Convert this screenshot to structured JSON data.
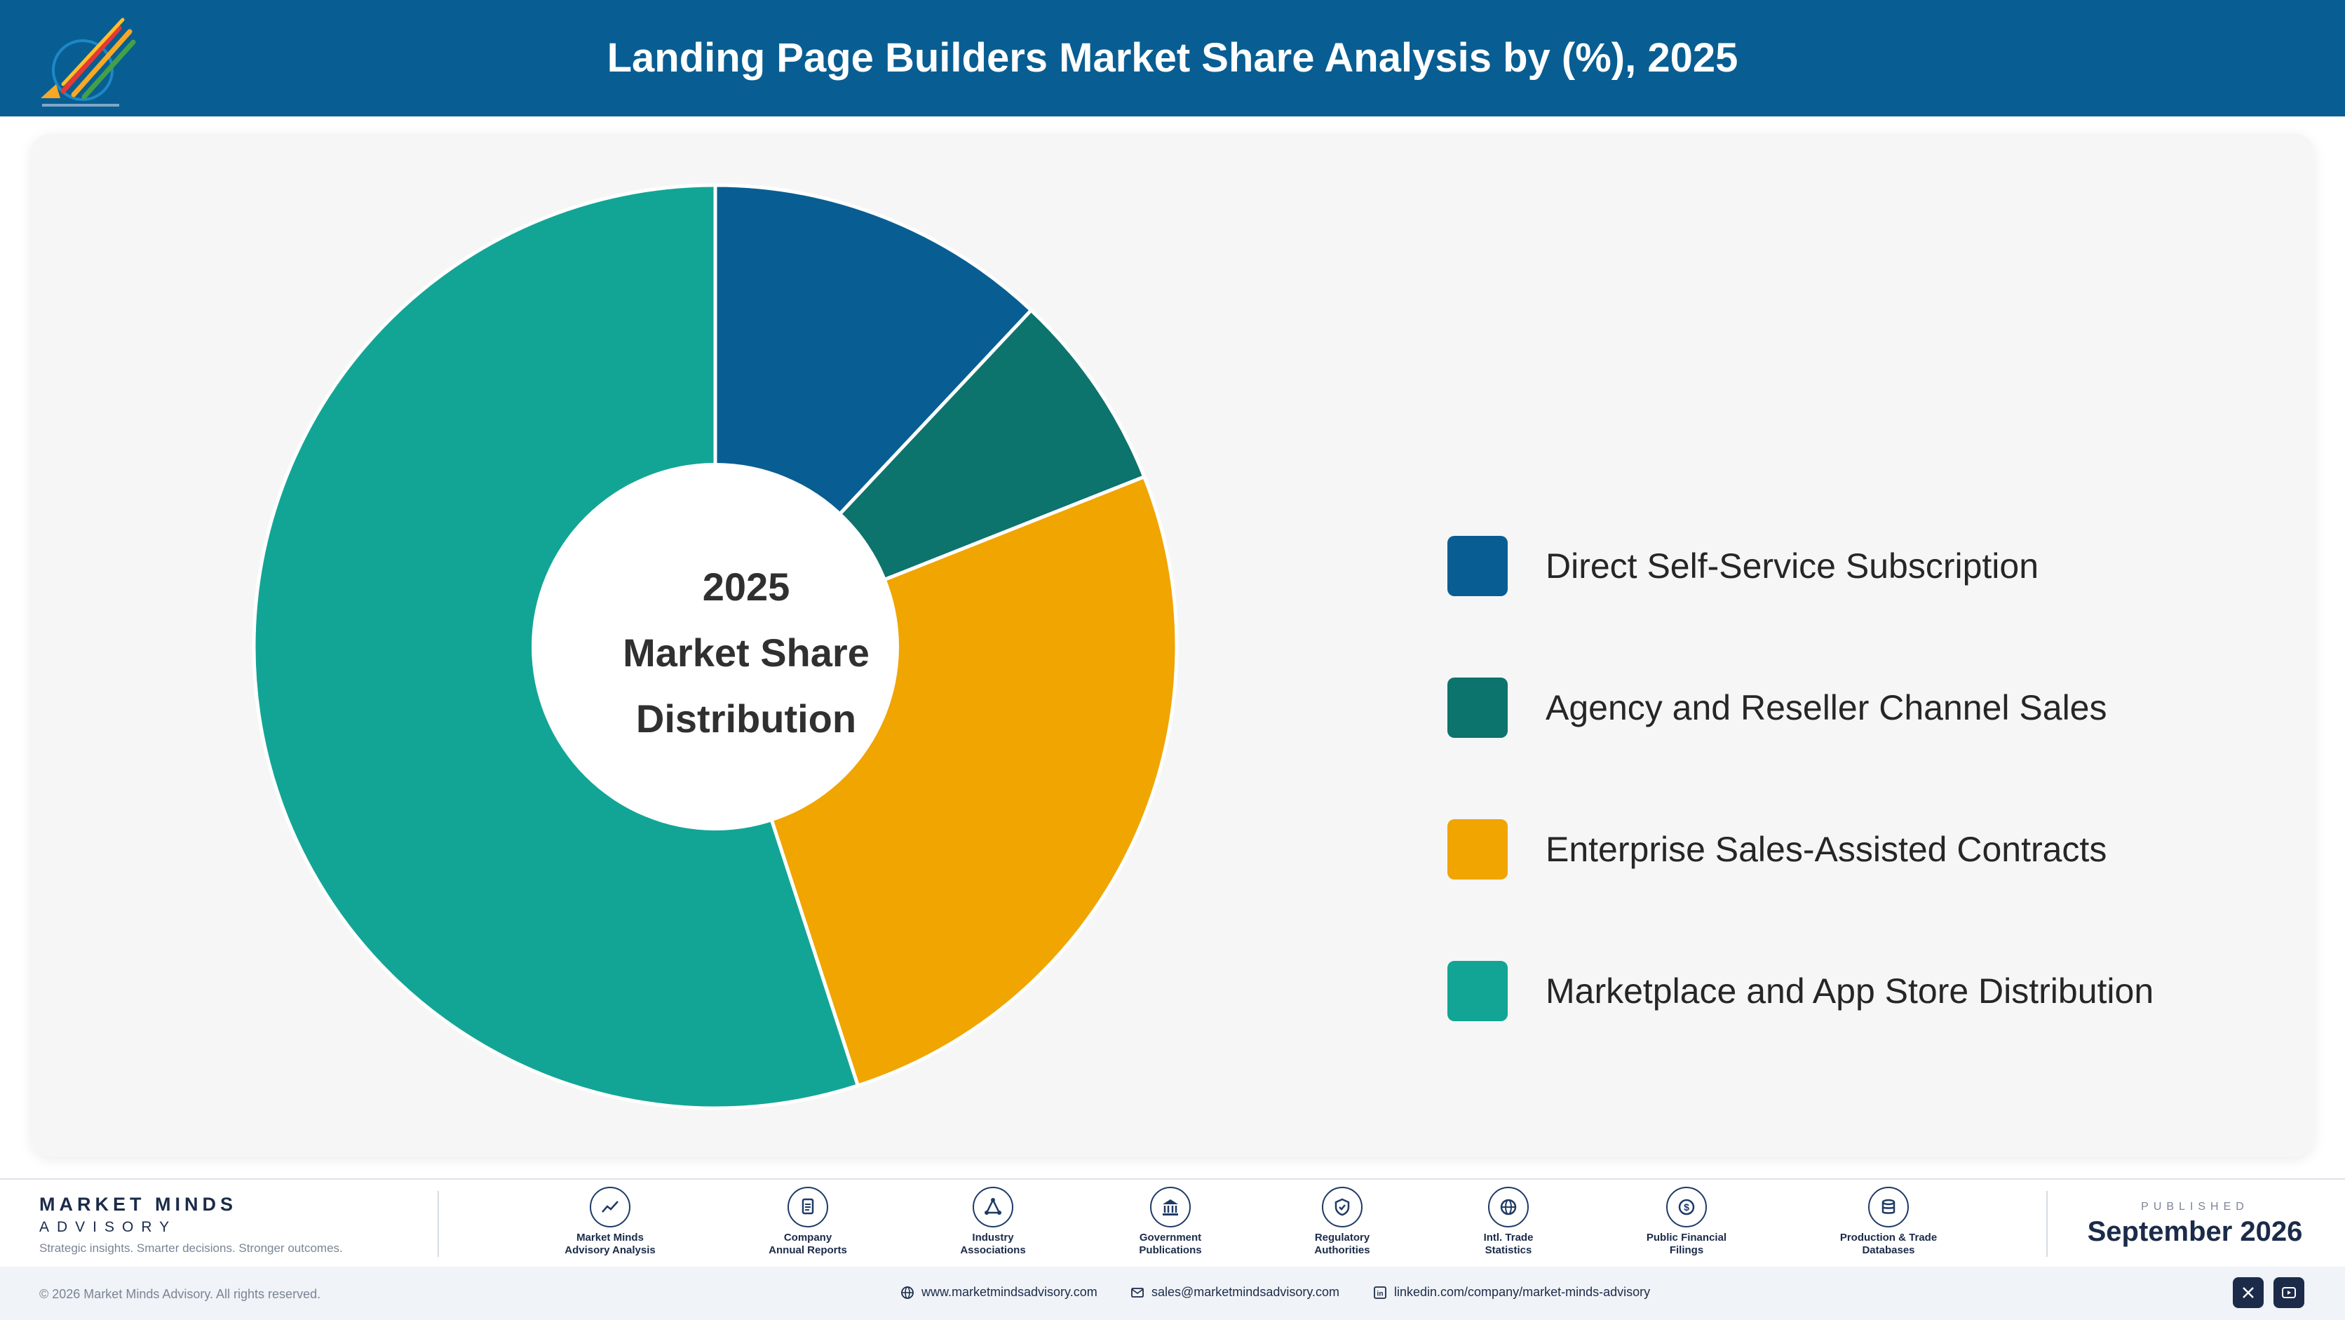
{
  "header": {
    "title": "Landing Page Builders Market Share Analysis by (%), 2025"
  },
  "chart_data": {
    "type": "pie",
    "donut": true,
    "title": "Landing Page Builders Market Share Analysis by (%), 2025",
    "center_text": [
      "2025",
      "Market Share",
      "Distribution"
    ],
    "categories": [
      "Direct Self-Service Subscription",
      "Agency and Reseller Channel Sales",
      "Enterprise Sales-Assisted Contracts",
      "Marketplace and App Store Distribution"
    ],
    "values": [
      12,
      7,
      26,
      55
    ],
    "colors": [
      "#085e92",
      "#0d736d",
      "#f0a500",
      "#12a595"
    ],
    "legend_position": "right"
  },
  "footer": {
    "brand_name": "MARKET MINDS",
    "brand_sub": "ADVISORY",
    "brand_tagline": "Strategic insights. Smarter decisions. Stronger outcomes.",
    "sources": [
      {
        "icon": "trend-icon",
        "label_line1": "Market Minds",
        "label_line2": "Advisory Analysis"
      },
      {
        "icon": "document-icon",
        "label_line1": "Company",
        "label_line2": "Annual Reports"
      },
      {
        "icon": "network-icon",
        "label_line1": "Industry",
        "label_line2": "Associations"
      },
      {
        "icon": "government-icon",
        "label_line1": "Government",
        "label_line2": "Publications"
      },
      {
        "icon": "shield-icon",
        "label_line1": "Regulatory",
        "label_line2": "Authorities"
      },
      {
        "icon": "globe-icon",
        "label_line1": "Intl. Trade",
        "label_line2": "Statistics"
      },
      {
        "icon": "dollar-icon",
        "label_line1": "Public Financial",
        "label_line2": "Filings"
      },
      {
        "icon": "database-icon",
        "label_line1": "Production & Trade",
        "label_line2": "Databases"
      }
    ],
    "published_label": "PUBLISHED",
    "published_date": "September 2026",
    "copyright": "© 2026 Market Minds Advisory. All rights reserved.",
    "website": "www.marketmindsadvisory.com",
    "email": "sales@marketmindsadvisory.com",
    "linkedin": "linkedin.com/company/market-minds-advisory"
  }
}
